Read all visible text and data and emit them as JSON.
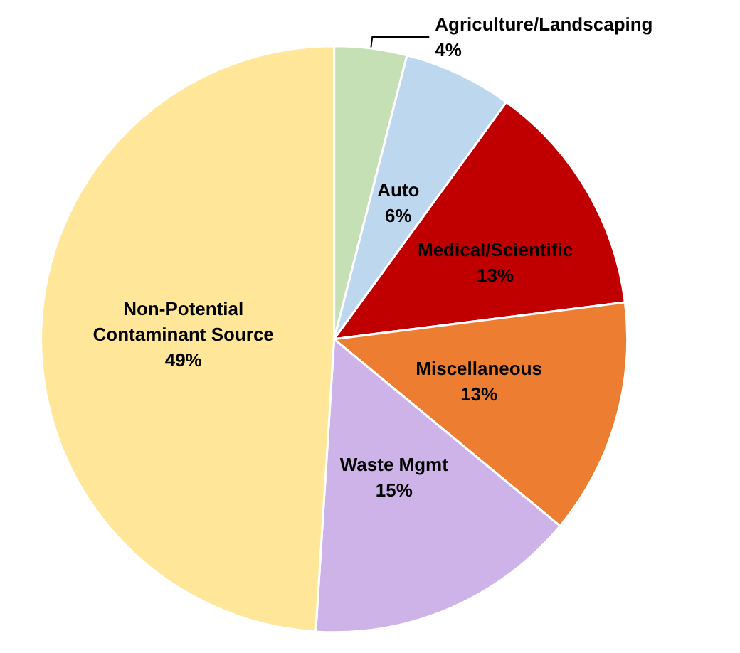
{
  "chart_data": {
    "type": "pie",
    "categories": [
      "Agriculture/Landscaping",
      "Auto",
      "Medical/Scientific",
      "Miscellaneous",
      "Waste Mgmt",
      "Non-Potential\nContaminant Source"
    ],
    "values": [
      4,
      6,
      13,
      13,
      15,
      49
    ],
    "value_labels": [
      "4%",
      "6%",
      "13%",
      "13%",
      "15%",
      "49%"
    ],
    "colors": [
      "#c5e0b4",
      "#bdd7ee",
      "#c00000",
      "#ed7d31",
      "#cdb3e8",
      "#ffe699"
    ],
    "legend": false
  }
}
